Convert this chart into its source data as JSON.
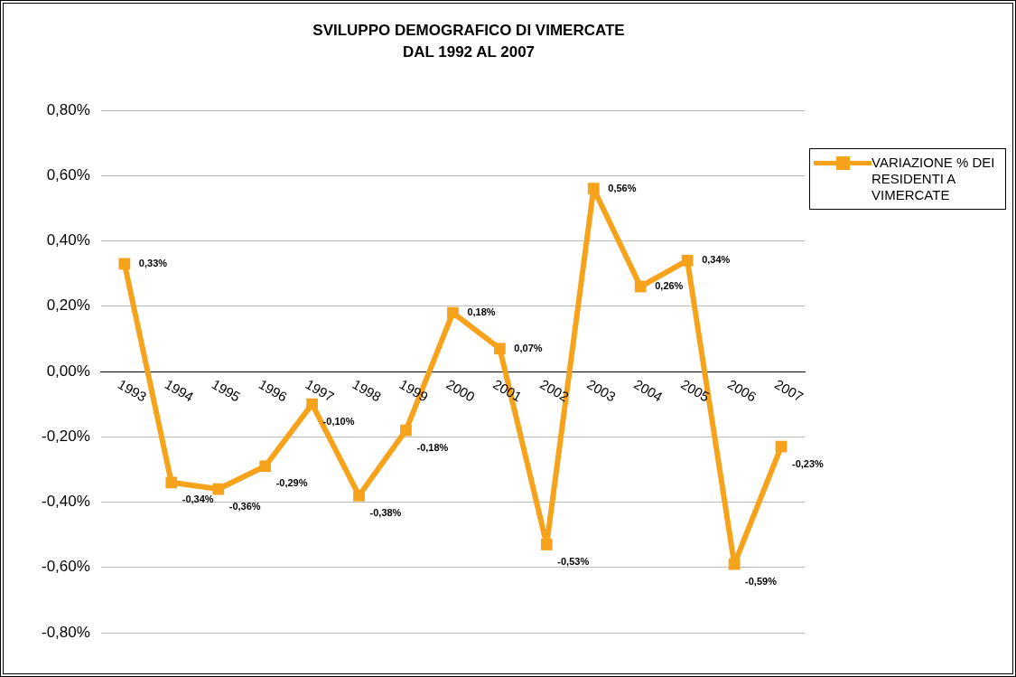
{
  "chart_data": {
    "type": "line",
    "title": "SVILUPPO DEMOGRAFICO DI VIMERCATE\nDAL 1992 AL 2007",
    "categories": [
      "1993",
      "1994",
      "1995",
      "1996",
      "1997",
      "1998",
      "1999",
      "2000",
      "2001",
      "2002",
      "2003",
      "2004",
      "2005",
      "2006",
      "2007"
    ],
    "series": [
      {
        "name": "VARIAZIONE % DEI RESIDENTI A VIMERCATE",
        "color": "#f7a21b",
        "values": [
          0.33,
          -0.34,
          -0.36,
          -0.29,
          -0.1,
          -0.38,
          -0.18,
          0.18,
          0.07,
          -0.53,
          0.56,
          0.26,
          0.34,
          -0.59,
          -0.23
        ],
        "value_labels": [
          "0,33%",
          "-0,34%",
          "-0,36%",
          "-0,29%",
          "-0,10%",
          "-0,38%",
          "-0,18%",
          "0,18%",
          "0,07%",
          "-0,53%",
          "0,56%",
          "0,26%",
          "0,34%",
          "-0,59%",
          "-0,23%"
        ]
      }
    ],
    "ylim": [
      -0.8,
      0.8
    ],
    "yticks": [
      {
        "value": -0.8,
        "label": "-0,80%"
      },
      {
        "value": -0.6,
        "label": "-0,60%"
      },
      {
        "value": -0.4,
        "label": "-0,40%"
      },
      {
        "value": -0.2,
        "label": "-0,20%"
      },
      {
        "value": 0,
        "label": "0,00%"
      },
      {
        "value": 0.2,
        "label": "0,20%"
      },
      {
        "value": 0.4,
        "label": "0,40%"
      },
      {
        "value": 0.6,
        "label": "0,60%"
      },
      {
        "value": 0.8,
        "label": "0,80%"
      }
    ],
    "grid": "y",
    "legend": "right",
    "marker": "square",
    "line_style": "solid"
  }
}
